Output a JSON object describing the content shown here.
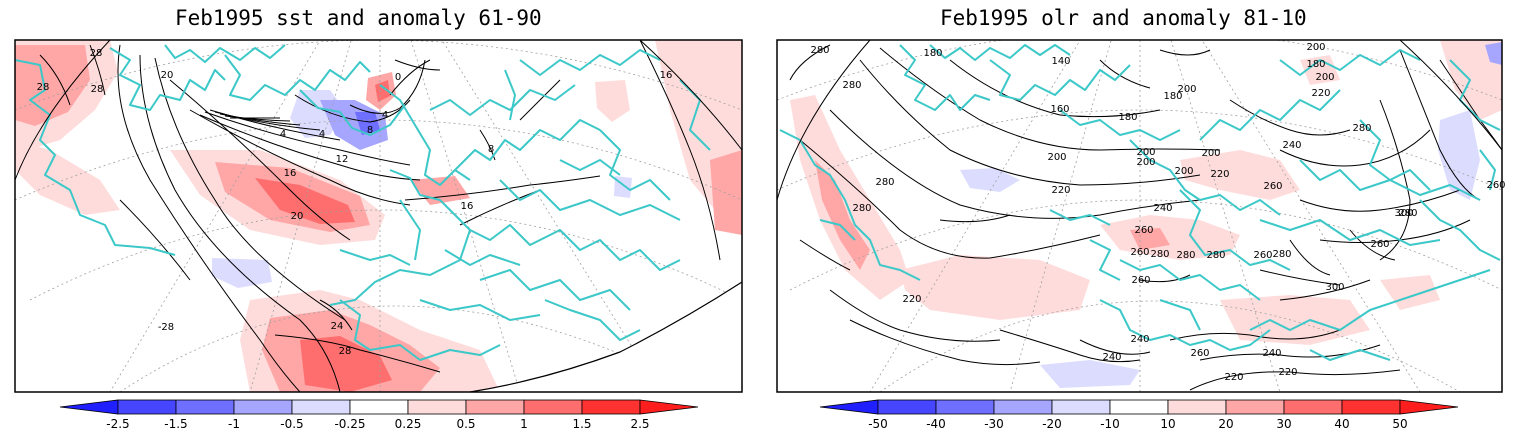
{
  "panels": [
    {
      "title": "Feb1995 sst and anomaly 61-90",
      "contour_labels": [
        "28",
        "28",
        "28",
        "20",
        "0",
        "4",
        "4",
        "8",
        "12",
        "16",
        "20",
        "16",
        "24",
        "28",
        "-28",
        "8",
        "4",
        "16"
      ],
      "colorbar_labels": [
        "-2.5",
        "-1.5",
        "-1",
        "-0.5",
        "-0.25",
        "0.25",
        "0.5",
        "1",
        "1.5",
        "2.5"
      ]
    },
    {
      "title": "Feb1995 olr and anomaly 81-10",
      "contour_labels": [
        "180",
        "160",
        "140",
        "180",
        "200",
        "180",
        "200",
        "220",
        "240",
        "260",
        "280",
        "280",
        "260",
        "280",
        "280",
        "220",
        "200",
        "200",
        "200",
        "200",
        "220",
        "240",
        "260",
        "280",
        "280",
        "280",
        "300",
        "260",
        "260",
        "220",
        "240",
        "260",
        "240",
        "220",
        "300",
        "260",
        "240",
        "260",
        "280",
        "280",
        "200",
        "180",
        "280",
        "220",
        "200"
      ],
      "colorbar_labels": [
        "-50",
        "-40",
        "-30",
        "-20",
        "-10",
        "10",
        "20",
        "30",
        "40",
        "50"
      ]
    }
  ],
  "colors": {
    "coast": "#3cc8c8",
    "neg3": "#2828ff",
    "neg2": "#6e6eff",
    "neg1": "#a6a6ff",
    "neg0": "#dcdcff",
    "pos0": "#ffdcdc",
    "pos1": "#ffa6a6",
    "pos2": "#ff6e6e",
    "pos3": "#ff2828"
  }
}
